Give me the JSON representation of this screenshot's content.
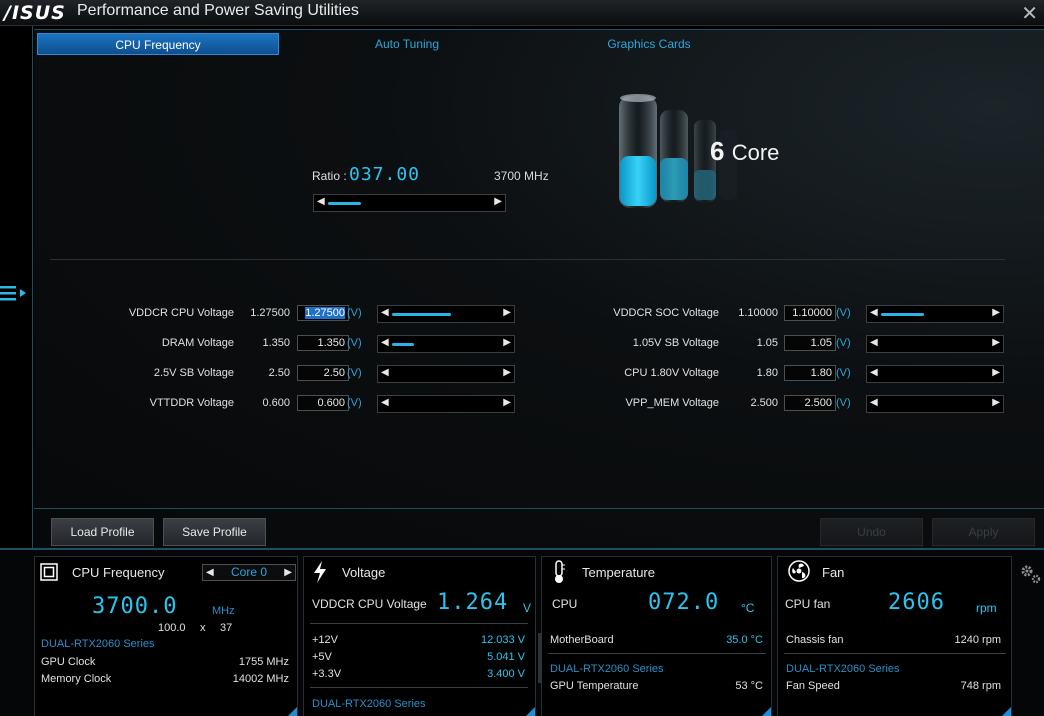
{
  "window": {
    "logo": "/ISUS",
    "title": "Performance and Power Saving Utilities",
    "close": "✕"
  },
  "tabs": [
    "CPU Frequency",
    "Auto Tuning",
    "Graphics Cards"
  ],
  "ratio": {
    "label": "Ratio :",
    "value": "037.00",
    "mhz": "3700 MHz",
    "slider_level": 0.2
  },
  "cores": {
    "number": "6",
    "label": "Core"
  },
  "voltages_left": [
    {
      "label": "VDDCR CPU Voltage",
      "current": "1.27500",
      "input": "1.27500",
      "unit": "(V)",
      "level": 0.55
    },
    {
      "label": "DRAM Voltage",
      "current": "1.350",
      "input": "1.350",
      "unit": "(V)",
      "level": 0.2
    },
    {
      "label": "2.5V SB Voltage",
      "current": "2.50",
      "input": "2.50",
      "unit": "(V)",
      "level": 0
    },
    {
      "label": "VTTDDR Voltage",
      "current": "0.600",
      "input": "0.600",
      "unit": "(V)",
      "level": 0
    }
  ],
  "voltages_right": [
    {
      "label": "VDDCR SOC Voltage",
      "current": "1.10000",
      "input": "1.10000",
      "unit": "(V)",
      "level": 0.4
    },
    {
      "label": "1.05V SB Voltage",
      "current": "1.05",
      "input": "1.05",
      "unit": "(V)",
      "level": 0
    },
    {
      "label": "CPU 1.80V Voltage",
      "current": "1.80",
      "input": "1.80",
      "unit": "(V)",
      "level": 0
    },
    {
      "label": "VPP_MEM Voltage",
      "current": "2.500",
      "input": "2.500",
      "unit": "(V)",
      "level": 0
    }
  ],
  "buttons": {
    "load": "Load Profile",
    "save": "Save Profile",
    "undo": "Undo",
    "apply": "Apply"
  },
  "cpu_card": {
    "title": "CPU Frequency",
    "core": "Core 0",
    "freq": "3700.0",
    "freq_unit": "MHz",
    "bclk": "100.0",
    "x": "x",
    "mult": "37",
    "gpu_name": "DUAL-RTX2060 Series",
    "rows": [
      {
        "label": "GPU Clock",
        "value": "1755 MHz"
      },
      {
        "label": "Memory Clock",
        "value": "14002 MHz"
      }
    ]
  },
  "voltage_card": {
    "title": "Voltage",
    "main_label": "VDDCR CPU Voltage",
    "main_value": "1.264",
    "main_unit": "V",
    "rows": [
      {
        "label": "+12V",
        "value": "12.033  V"
      },
      {
        "label": "+5V",
        "value": "5.041  V"
      },
      {
        "label": "+3.3V",
        "value": "3.400  V"
      }
    ],
    "footer": "DUAL-RTX2060 Series"
  },
  "temp_card": {
    "title": "Temperature",
    "main_label": "CPU",
    "main_value": "072.0",
    "main_unit": "°C",
    "rows": [
      {
        "label": "MotherBoard",
        "value": "35.0 °C"
      }
    ],
    "gpu_name": "DUAL-RTX2060 Series",
    "gpu_label": "GPU Temperature",
    "gpu_value": "53 °C"
  },
  "fan_card": {
    "title": "Fan",
    "main_label": "CPU fan",
    "main_value": "2606",
    "main_unit": "rpm",
    "rows": [
      {
        "label": "Chassis fan",
        "value": "1240  rpm"
      }
    ],
    "gpu_name": "DUAL-RTX2060 Series",
    "gpu_label": "Fan Speed",
    "gpu_value": "748 rpm"
  },
  "icons": [
    "close-icon",
    "menu-toggle-icon",
    "battery-core-icon",
    "cpu-chip-icon",
    "lightning-icon",
    "thermometer-icon",
    "fan-icon",
    "settings-gear-icon"
  ],
  "colors": {
    "accent": "#2bc4ef",
    "tab_active": "#1a74c2",
    "link": "#2a8fc9"
  }
}
